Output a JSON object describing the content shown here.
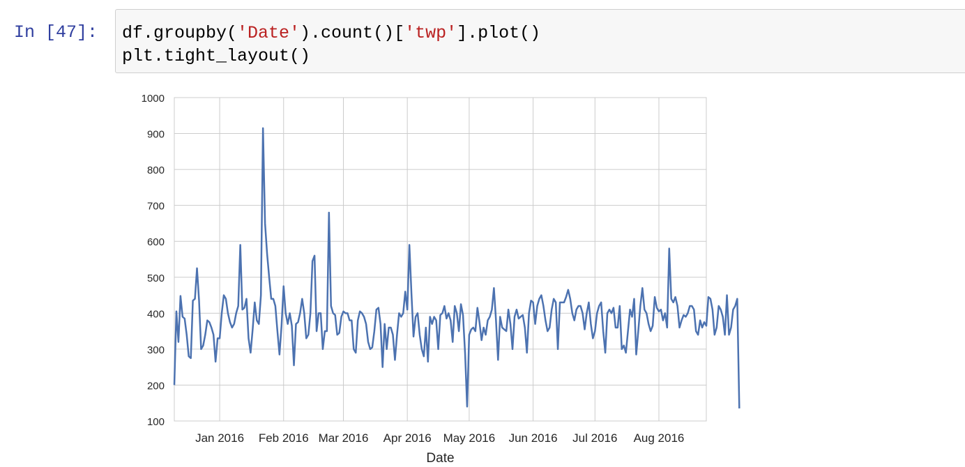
{
  "cell": {
    "prompt": "In [47]:",
    "code_lines": [
      [
        {
          "t": "df.groupby(",
          "c": "plain"
        },
        {
          "t": "'Date'",
          "c": "str"
        },
        {
          "t": ").count()[",
          "c": "plain"
        },
        {
          "t": "'twp'",
          "c": "str"
        },
        {
          "t": "].plot()",
          "c": "plain"
        }
      ],
      [
        {
          "t": "plt.tight_layout()",
          "c": "plain"
        }
      ]
    ]
  },
  "chart_data": {
    "type": "line",
    "title": "",
    "xlabel": "Date",
    "ylabel": "",
    "x_start": "2015-12-10",
    "x_end": "2016-08-24",
    "xlim": [
      "2015-12-10",
      "2016-08-24"
    ],
    "ylim": [
      100,
      1000
    ],
    "y_ticks": [
      100,
      200,
      300,
      400,
      500,
      600,
      700,
      800,
      900,
      1000
    ],
    "x_ticks": [
      {
        "date": "2016-01-01",
        "label": "Jan 2016"
      },
      {
        "date": "2016-02-01",
        "label": "Feb 2016"
      },
      {
        "date": "2016-03-01",
        "label": "Mar 2016"
      },
      {
        "date": "2016-04-01",
        "label": "Apr 2016"
      },
      {
        "date": "2016-05-01",
        "label": "May 2016"
      },
      {
        "date": "2016-06-01",
        "label": "Jun 2016"
      },
      {
        "date": "2016-07-01",
        "label": "Jul 2016"
      },
      {
        "date": "2016-08-01",
        "label": "Aug 2016"
      }
    ],
    "grid": true,
    "line_color": "#4c72b0",
    "series": [
      {
        "values": [
          200,
          405,
          320,
          448,
          390,
          385,
          340,
          280,
          275,
          435,
          440,
          525,
          435,
          300,
          310,
          340,
          380,
          375,
          360,
          340,
          265,
          330,
          330,
          400,
          450,
          440,
          400,
          375,
          360,
          370,
          400,
          420,
          590,
          410,
          415,
          440,
          330,
          290,
          355,
          430,
          380,
          370,
          450,
          915,
          650,
          565,
          500,
          440,
          440,
          420,
          350,
          285,
          365,
          475,
          400,
          370,
          400,
          365,
          255,
          370,
          375,
          400,
          440,
          400,
          330,
          340,
          400,
          545,
          560,
          350,
          400,
          400,
          300,
          350,
          350,
          680,
          420,
          400,
          395,
          340,
          345,
          390,
          405,
          400,
          400,
          380,
          380,
          300,
          290,
          380,
          405,
          400,
          390,
          370,
          320,
          300,
          305,
          350,
          410,
          415,
          370,
          250,
          370,
          300,
          360,
          360,
          340,
          270,
          340,
          400,
          390,
          400,
          460,
          410,
          590,
          455,
          335,
          390,
          400,
          340,
          300,
          280,
          360,
          265,
          390,
          370,
          390,
          380,
          300,
          395,
          400,
          420,
          385,
          400,
          380,
          320,
          420,
          400,
          350,
          425,
          395,
          290,
          140,
          340,
          355,
          360,
          350,
          415,
          375,
          325,
          360,
          340,
          380,
          390,
          410,
          470,
          380,
          270,
          390,
          360,
          355,
          350,
          410,
          370,
          300,
          390,
          410,
          385,
          390,
          395,
          360,
          290,
          400,
          435,
          430,
          370,
          420,
          440,
          450,
          420,
          380,
          350,
          360,
          410,
          440,
          430,
          300,
          430,
          430,
          430,
          445,
          465,
          440,
          400,
          380,
          410,
          420,
          420,
          400,
          355,
          400,
          430,
          370,
          330,
          350,
          400,
          420,
          430,
          350,
          290,
          400,
          410,
          400,
          415,
          360,
          360,
          420,
          300,
          310,
          290,
          350,
          410,
          390,
          440,
          285,
          350,
          420,
          470,
          410,
          400,
          370,
          350,
          365,
          445,
          415,
          405,
          410,
          380,
          400,
          360,
          580,
          440,
          430,
          445,
          420,
          360,
          380,
          395,
          390,
          400,
          420,
          420,
          410,
          350,
          340,
          380,
          360,
          375,
          365,
          445,
          440,
          410,
          340,
          360,
          420,
          410,
          390,
          340,
          450,
          340,
          360,
          410,
          420,
          440,
          135
        ]
      }
    ]
  }
}
